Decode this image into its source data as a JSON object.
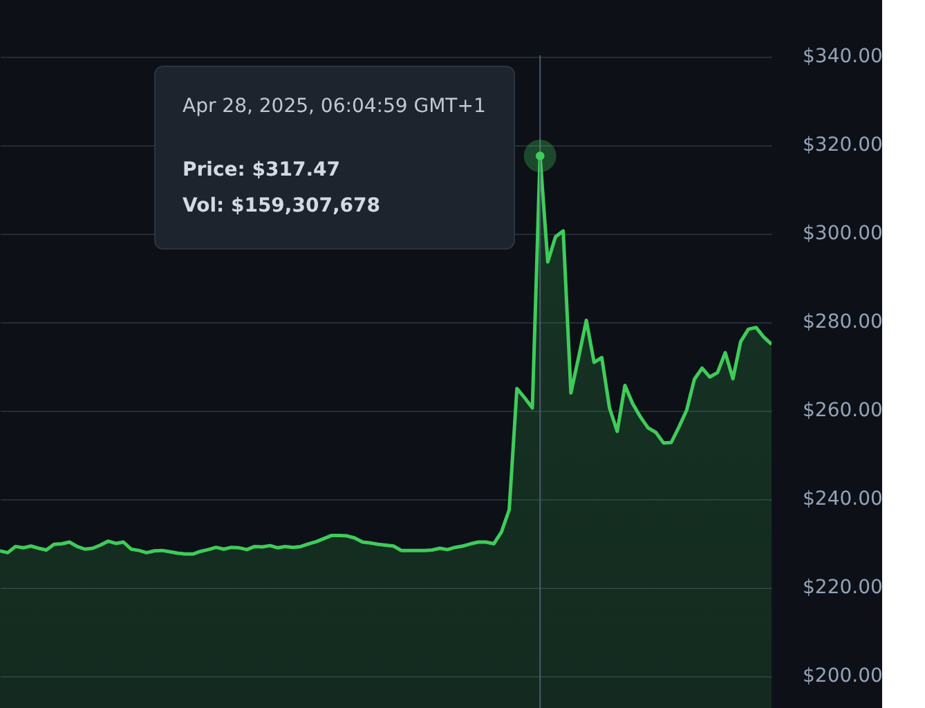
{
  "chart_data": {
    "type": "area",
    "categories": [
      null,
      null,
      null,
      null,
      null,
      null,
      null,
      null,
      null,
      null,
      null,
      null,
      null,
      null,
      null,
      null,
      null,
      null,
      null,
      null,
      null,
      null,
      null,
      null,
      null,
      null,
      null,
      null,
      null,
      null,
      null,
      null,
      null,
      null,
      null,
      null,
      null,
      null,
      null,
      null,
      null,
      null,
      null,
      null,
      null,
      null,
      null,
      null,
      null,
      null,
      null,
      null,
      null,
      null,
      null,
      null,
      null,
      null,
      null,
      null,
      null,
      null,
      null,
      null,
      null,
      null,
      null,
      null,
      null,
      null,
      null,
      null,
      null,
      null,
      null,
      null,
      null,
      null,
      null,
      null,
      null,
      null,
      null,
      null,
      null,
      null,
      null,
      null,
      null,
      null,
      null,
      null,
      null,
      null,
      null,
      null,
      null,
      null,
      null,
      null,
      null
    ],
    "series": [
      {
        "color": "#3fcc5a",
        "values": [
          228.2,
          227.8,
          229.2,
          228.9,
          229.3,
          228.8,
          228.4,
          229.7,
          229.8,
          230.2,
          229.2,
          228.6,
          228.8,
          229.5,
          230.4,
          229.9,
          230.2,
          228.6,
          228.3,
          227.8,
          228.2,
          228.3,
          228.0,
          227.7,
          227.5,
          227.5,
          228.1,
          228.5,
          229.0,
          228.6,
          229.0,
          228.9,
          228.5,
          229.2,
          229.1,
          229.4,
          228.9,
          229.2,
          229.0,
          229.2,
          229.8,
          230.3,
          231.0,
          231.7,
          231.7,
          231.6,
          231.1,
          230.2,
          230.0,
          229.7,
          229.5,
          229.3,
          228.3,
          228.3,
          228.3,
          228.3,
          228.4,
          228.8,
          228.5,
          229.0,
          229.3,
          229.8,
          230.2,
          230.2,
          229.8,
          232.5,
          237.5,
          264.9,
          262.8,
          260.5,
          317.47,
          293.5,
          299.2,
          300.5,
          263.9,
          272.0,
          280.3,
          270.8,
          271.9,
          260.5,
          255.2,
          265.6,
          261.5,
          258.5,
          256.0,
          255.0,
          252.6,
          252.7,
          256.2,
          260.0,
          267.0,
          269.5,
          267.5,
          268.5,
          273.0,
          267.1,
          275.5,
          278.3,
          278.7,
          276.5,
          274.9
        ]
      }
    ],
    "ylim": [
      192.7,
      352.7
    ],
    "yticks": [
      {
        "value": 200,
        "label": "$200.00"
      },
      {
        "value": 220,
        "label": "$220.00"
      },
      {
        "value": 240,
        "label": "$240.00"
      },
      {
        "value": 260,
        "label": "$260.00"
      },
      {
        "value": 280,
        "label": "$280.00"
      },
      {
        "value": 300,
        "label": "$300.00"
      },
      {
        "value": 320,
        "label": "$320.00"
      },
      {
        "value": 340,
        "label": "$340.00"
      }
    ],
    "grid": "y",
    "tick_labels": "y",
    "annotations": [
      "Apr 28, 2025, 06:04:59 GMT+1",
      "Price: $317.47",
      "Vol: $159,307,678"
    ]
  }
}
